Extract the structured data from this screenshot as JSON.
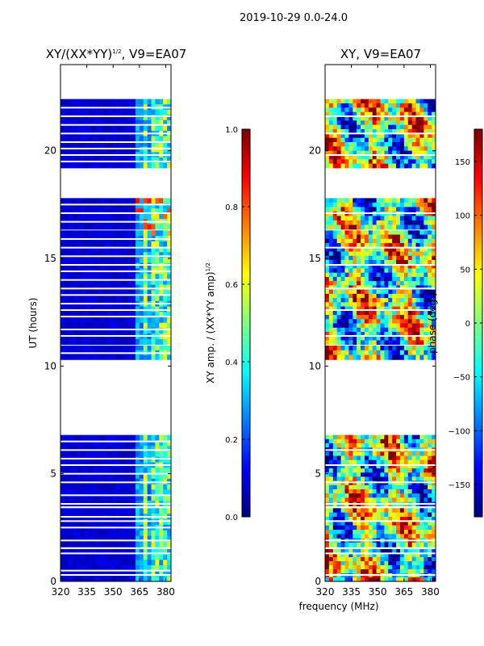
{
  "figure": {
    "suptitle": "2019-10-29 0.0-24.0",
    "xlabel": "frequency (MHz)",
    "ylabel": "UT (hours)"
  },
  "colors": {
    "background": "#ffffff",
    "axis": "#000000",
    "jet": [
      "#00007f",
      "#0000ff",
      "#007fff",
      "#00ffff",
      "#7fff7f",
      "#ffff00",
      "#ff7f00",
      "#ff0000",
      "#7f0000"
    ]
  },
  "chart_data": [
    {
      "type": "heatmap",
      "title_base": "XY/(XX*YY)",
      "title_sup": "1/2",
      "title_suffix": ", V9=EA07",
      "xlabel": "frequency (MHz)",
      "ylabel": "UT (hours)",
      "xlim": [
        320,
        383
      ],
      "ylim": [
        0,
        24
      ],
      "xticks": [
        320,
        335,
        350,
        365,
        380
      ],
      "yticks": [
        0,
        5,
        10,
        15,
        20
      ],
      "colorbar": {
        "label_base": "XY amp. / (XX*YY amp)",
        "label_sup": "1/2",
        "range": [
          0.0,
          1.0
        ],
        "ticks": [
          "0.0",
          "0.2",
          "0.4",
          "0.6",
          "0.8",
          "1.0"
        ]
      },
      "data_blocks_hours": [
        [
          0.0,
          1.5
        ],
        [
          1.6,
          3.4
        ],
        [
          3.5,
          6.8
        ],
        [
          10.3,
          10.95
        ],
        [
          11.0,
          16.3
        ],
        [
          16.35,
          17.8
        ],
        [
          19.2,
          22.4
        ]
      ],
      "gap_rows_hours": [
        0.3,
        0.5,
        1.3,
        1.9,
        2.5,
        2.8,
        3.0,
        3.6,
        4.0,
        4.6,
        5.0,
        5.4,
        5.7,
        6.1,
        6.5,
        10.6,
        11.4,
        11.7,
        12.3,
        12.6,
        12.9,
        13.3,
        13.6,
        14.0,
        14.4,
        14.7,
        15.1,
        15.5,
        15.9,
        16.7,
        17.1,
        17.5,
        19.5,
        19.8,
        20.1,
        20.4,
        20.8,
        21.2,
        21.6,
        22.0
      ],
      "high_amp_channel_bands_mhz": [
        [
          364,
          366
        ],
        [
          367,
          369
        ],
        [
          371,
          374
        ],
        [
          375,
          378
        ],
        [
          379,
          382
        ]
      ],
      "typical_values": {
        "background": 0.05,
        "band_365_380": 0.45
      }
    },
    {
      "type": "heatmap",
      "title": "XY, V9=EA07",
      "xlabel": "frequency (MHz)",
      "ylabel": "",
      "xlim": [
        320,
        383
      ],
      "ylim": [
        0,
        24
      ],
      "xticks": [
        320,
        335,
        350,
        365,
        380
      ],
      "yticks": [
        0,
        5,
        10,
        15,
        20
      ],
      "colorbar": {
        "label": "phase (deg.)",
        "range": [
          -180,
          180
        ],
        "ticks": [
          "150",
          "100",
          "50",
          "0",
          "−50",
          "−100",
          "−150"
        ]
      },
      "data_blocks_hours": [
        [
          0.0,
          1.5
        ],
        [
          1.6,
          3.4
        ],
        [
          3.5,
          6.8
        ],
        [
          10.3,
          10.95
        ],
        [
          11.0,
          16.3
        ],
        [
          16.35,
          17.8
        ],
        [
          19.2,
          22.4
        ]
      ],
      "gap_rows_hours": [
        0.3,
        1.3,
        1.9,
        2.8,
        3.6,
        4.6,
        5.4,
        6.1,
        11.4,
        12.6,
        13.6,
        14.7,
        15.5,
        17.1,
        19.8,
        20.8,
        21.6
      ],
      "typical_values": {
        "phase_range": [
          -180,
          180
        ]
      }
    }
  ]
}
